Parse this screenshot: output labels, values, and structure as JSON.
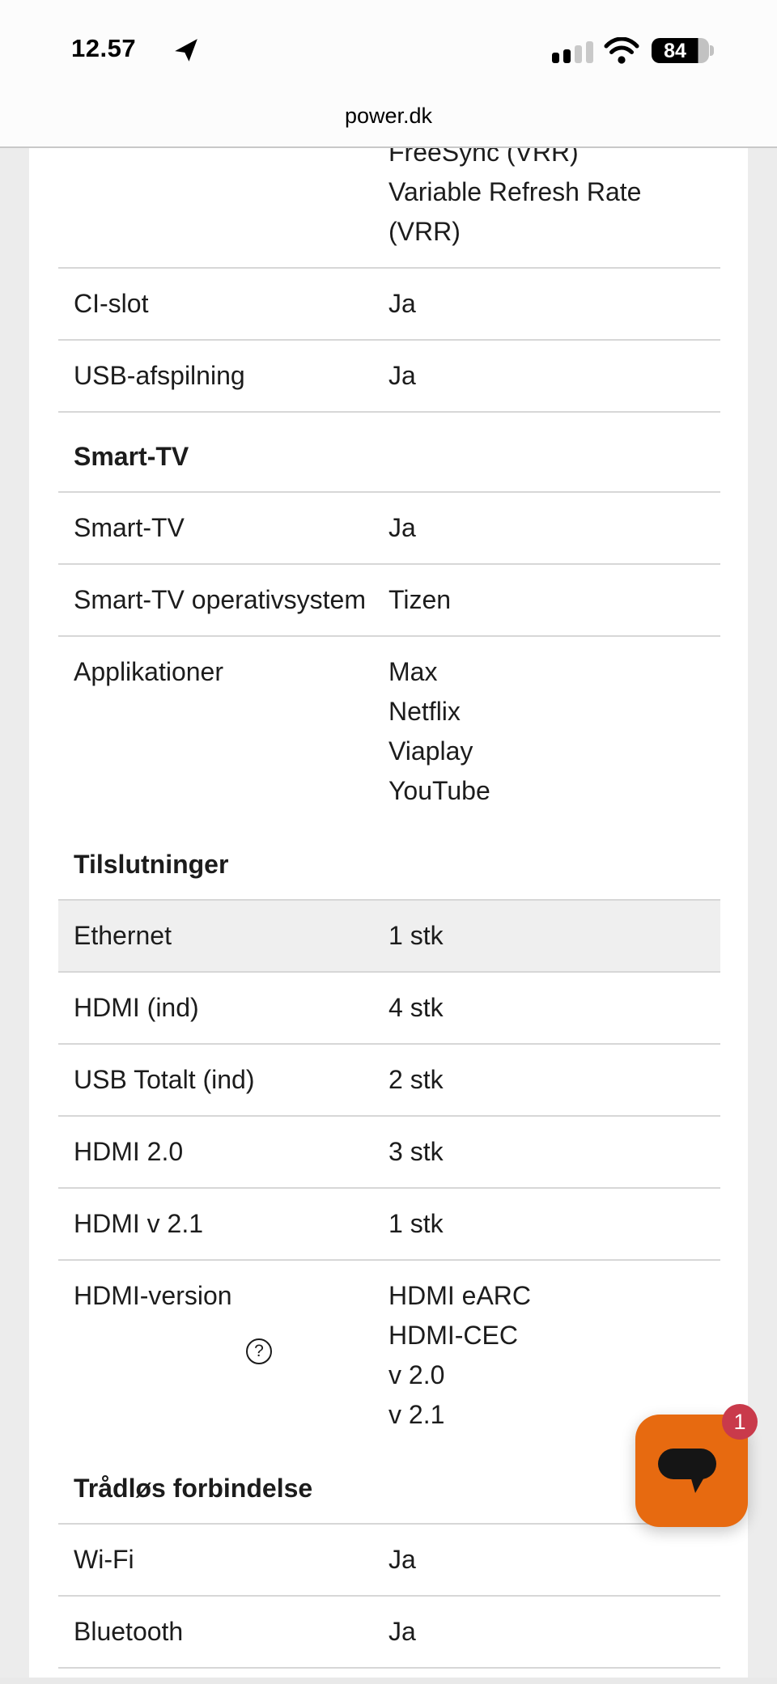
{
  "status_bar": {
    "time": "12.57",
    "battery_percent": "84",
    "signal_bars_filled": 2,
    "signal_bars_total": 4
  },
  "browser": {
    "url": "power.dk"
  },
  "sections": [
    {
      "header": null,
      "rows": [
        {
          "label": "",
          "values": [
            "FreeSync (VRR)",
            "Variable Refresh Rate",
            "(VRR)"
          ],
          "partial": true,
          "border": true
        },
        {
          "label": "CI-slot",
          "values": [
            "Ja"
          ],
          "border": true
        },
        {
          "label": "USB-afspilning",
          "values": [
            "Ja"
          ],
          "border": true
        }
      ]
    },
    {
      "header": "Smart-TV",
      "rows": [
        {
          "label": "Smart-TV",
          "values": [
            "Ja"
          ],
          "border": true
        },
        {
          "label": "Smart-TV operativsystem",
          "values": [
            "Tizen"
          ],
          "border": true
        },
        {
          "label": "Applikationer",
          "values": [
            "Max",
            "Netflix",
            "Viaplay",
            "YouTube"
          ],
          "border": false
        }
      ]
    },
    {
      "header": "Tilslutninger",
      "rows": [
        {
          "label": "Ethernet",
          "values": [
            "1 stk"
          ],
          "highlight": true,
          "border": true
        },
        {
          "label": "HDMI (ind)",
          "values": [
            "4 stk"
          ],
          "border": true
        },
        {
          "label": "USB Totalt (ind)",
          "values": [
            "2 stk"
          ],
          "border": true
        },
        {
          "label": "HDMI 2.0",
          "values": [
            "3 stk"
          ],
          "border": true
        },
        {
          "label": "HDMI v 2.1",
          "values": [
            "1 stk"
          ],
          "border": true
        },
        {
          "label": "HDMI-version",
          "values": [
            "HDMI eARC",
            "HDMI-CEC",
            "v 2.0",
            "v 2.1"
          ],
          "help": true,
          "border": false
        }
      ]
    },
    {
      "header": "Trådløs forbindelse",
      "rows": [
        {
          "label": "Wi-Fi",
          "values": [
            "Ja"
          ],
          "border": true
        },
        {
          "label": "Bluetooth",
          "values": [
            "Ja"
          ],
          "border": true
        }
      ]
    }
  ],
  "chat": {
    "badge_count": "1"
  },
  "icons": {
    "help": "?",
    "chat": "speech-bubble",
    "location": "navigation-arrow",
    "wifi": "wifi-waves",
    "signal": "cellular-bars",
    "battery": "battery-pill"
  },
  "colors": {
    "accent_orange": "#e76a10",
    "badge_red": "#c93a4b",
    "row_highlight": "#efefef",
    "divider": "#d7d7d7",
    "gutter": "#ececec"
  }
}
